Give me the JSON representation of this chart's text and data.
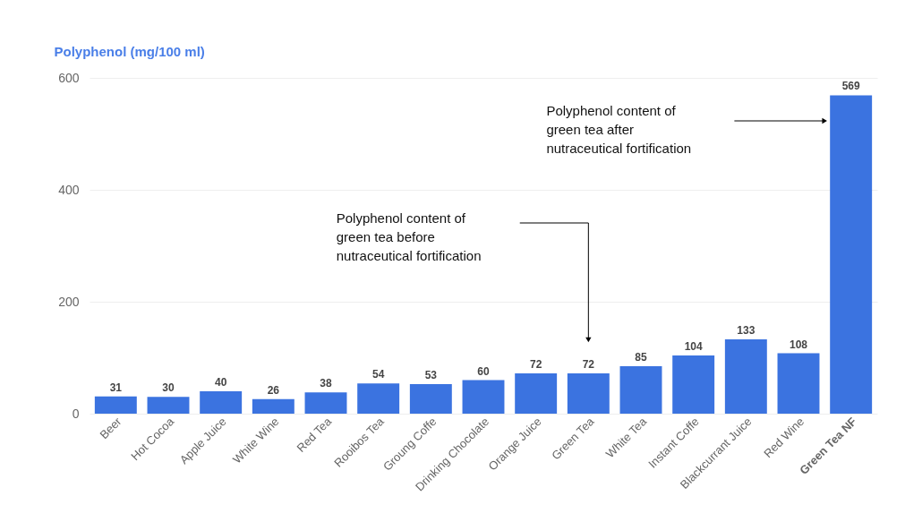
{
  "chart_data": {
    "type": "bar",
    "ylabel": "Polyphenol (mg/100 ml)",
    "categories": [
      "Beer",
      "Hot Cocoa",
      "Apple Juice",
      "White Wine",
      "Red Tea",
      "Rooibos Tea",
      "Groung Coffe",
      "Drinking Chocolate",
      "Orange Juice",
      "Green Tea",
      "White Tea",
      "Instant Coffe",
      "Blackcurrant Juice",
      "Red Wine",
      "Green Tea NF"
    ],
    "values": [
      31,
      30,
      40,
      26,
      38,
      54,
      53,
      60,
      72,
      72,
      85,
      104,
      133,
      108,
      569
    ],
    "color": "#3b73e0",
    "ylim": [
      0,
      600
    ],
    "yticks": [
      0,
      200,
      400,
      600
    ],
    "grid": "y",
    "data_labels": true,
    "annotations": [
      "Polyphenol content of\ngreen tea after\nnutraceutical fortification",
      "Polyphenol content of\ngreen tea before\nnutraceutical fortification"
    ]
  }
}
